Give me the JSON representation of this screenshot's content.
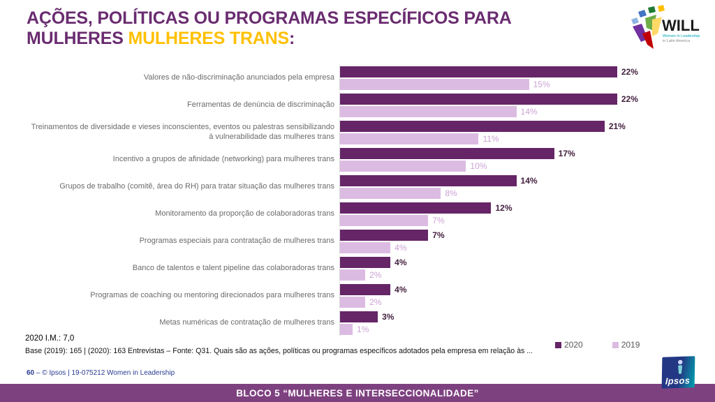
{
  "slide": {
    "title": {
      "line1": "AÇÕES, POLÍTICAS OU PROGRAMAS ESPECÍFICOS PARA",
      "line2_part1": "MULHERES ",
      "line2_highlight": "MULHERES TRANS",
      "line2_suffix": ":"
    },
    "notes": {
      "im": "2020 I.M.: 7,0",
      "base": "Base (2019): 165 | (2020): 163 Entrevistas – Fonte: Q31. Quais são as ações, políticas ou programas específicos adotados pela empresa em relação às ..."
    },
    "footer": {
      "page": "60",
      "separator": "–",
      "credit": "© Ipsos | 19-075212 Women in Leadership"
    },
    "banner": "BLOCO 5 “MULHERES E INTERSECCIONALIDADE”",
    "logos": {
      "will": {
        "text": "WILL",
        "sub1": "Women in Leadership",
        "sub2": "in Latin America"
      },
      "ipsos": "Ipsos"
    },
    "colors": {
      "title_purple": "#6A2C70",
      "highlight_gold": "#FFC000",
      "banner_purple": "#7E4180",
      "footer_blue": "#283B8F"
    }
  },
  "chart_data": {
    "type": "bar",
    "orientation": "horizontal",
    "title": "Ações, políticas ou programas específicos para mulheres trans",
    "categories": [
      "Valores de não-discriminação anunciados pela empresa",
      "Ferramentas de denúncia de discriminação",
      "Treinamentos de diversidade e vieses inconscientes, eventos ou palestras sensibilizando à vulnerabilidade das mulheres trans",
      "Incentivo a grupos de afinidade (networking) para mulheres trans",
      "Grupos de trabalho (comitê, área do RH) para tratar situação das mulheres trans",
      "Monitoramento da proporção de colaboradoras trans",
      "Programas especiais para contratação de mulheres trans",
      "Banco de talentos e talent pipeline das colaboradoras trans",
      "Programas de coaching ou mentoring direcionados para mulheres trans",
      "Metas numéricas de contratação de mulheres trans"
    ],
    "series": [
      {
        "name": "2020",
        "color": "#652567",
        "label_color": "#43203F",
        "values": [
          22,
          22,
          21,
          17,
          14,
          12,
          7,
          4,
          4,
          3
        ]
      },
      {
        "name": "2019",
        "color": "#DCBBE2",
        "label_color": "#CBA2D3",
        "values": [
          15,
          14,
          11,
          10,
          8,
          7,
          4,
          2,
          2,
          1
        ]
      }
    ],
    "value_suffix": "%",
    "xlim": [
      0,
      25
    ],
    "grid": false,
    "legend_position": "bottom-right"
  }
}
